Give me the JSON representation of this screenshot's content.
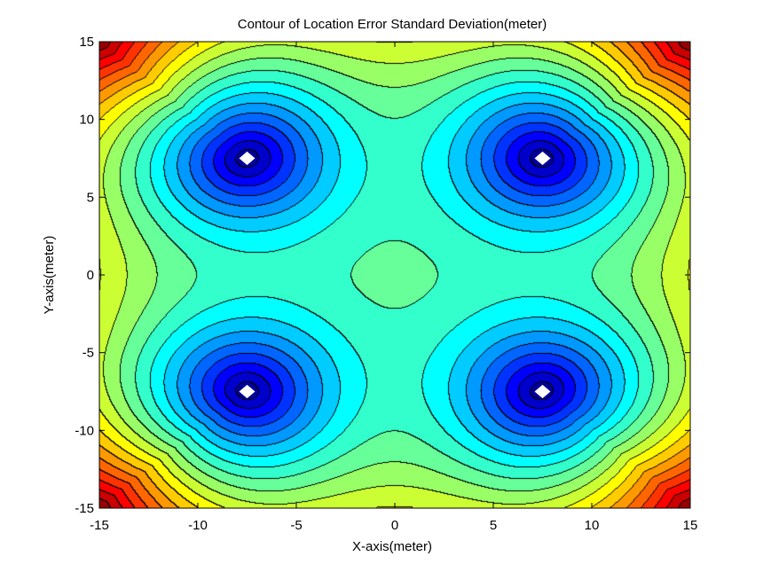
{
  "chart_data": {
    "type": "contour",
    "title": "Contour of Location Error Standard Deviation(meter)",
    "xlabel": "X-axis(meter)",
    "ylabel": "Y-axis(meter)",
    "xlim": [
      -15,
      15
    ],
    "ylim": [
      -15,
      15
    ],
    "xticks": [
      "-15",
      "-10",
      "-5",
      "0",
      "5",
      "10",
      "15"
    ],
    "yticks": [
      "15",
      "10",
      "5",
      "0",
      "-5",
      "-10",
      "-15"
    ],
    "xtick_values": [
      -15,
      -10,
      -5,
      0,
      5,
      10,
      15
    ],
    "ytick_values": [
      15,
      10,
      5,
      0,
      -5,
      -10,
      -15
    ],
    "colormap": "jet",
    "grid": false,
    "anchors": [
      {
        "x": -7.5,
        "y": 7.5
      },
      {
        "x": 7.5,
        "y": 7.5
      },
      {
        "x": -7.5,
        "y": -7.5
      },
      {
        "x": 7.5,
        "y": -7.5
      }
    ],
    "anchor_color": "#ffffff"
  }
}
